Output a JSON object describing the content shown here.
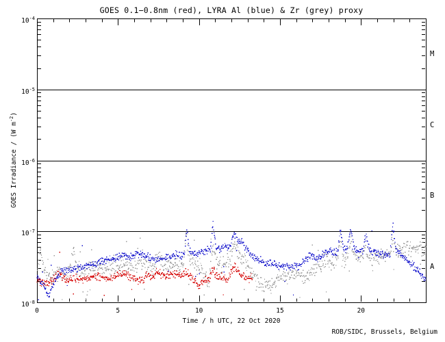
{
  "page": {
    "background": "#ffffff"
  },
  "credit": "ROB/SIDC, Brussels, Belgium",
  "chart_data": {
    "type": "scatter",
    "title": "GOES 0.1−0.8nm (red), LYRA Al (blue) & Zr (grey) proxy",
    "xlabel": "Time / h UTC, 22 Oct 2020",
    "ylabel": {
      "pre": "GOES Irradiance / (W m",
      "sup": "-2",
      "post": ")"
    },
    "x_axis": {
      "range_h": [
        0,
        24
      ],
      "major_ticks": [
        0,
        5,
        10,
        15,
        20
      ],
      "labels": [
        "0",
        "5",
        "10",
        "15",
        "20"
      ],
      "minor_tick_step_h": 1
    },
    "y_axis": {
      "scale": "log",
      "range_w_m2": [
        1e-08,
        0.0001
      ],
      "ticks": [
        {
          "base": "10",
          "exp": "-4",
          "value": 0.0001
        },
        {
          "base": "10",
          "exp": "-5",
          "value": 1e-05
        },
        {
          "base": "10",
          "exp": "-6",
          "value": 1e-06
        },
        {
          "base": "10",
          "exp": "-7",
          "value": 1e-07
        },
        {
          "base": "10",
          "exp": "-8",
          "value": 1e-08
        }
      ],
      "decade_gridlines": [
        1e-05,
        1e-06,
        1e-07
      ]
    },
    "flare_classes": [
      {
        "label": "M",
        "band": [
          1e-05,
          0.0001
        ]
      },
      {
        "label": "C",
        "band": [
          1e-06,
          1e-05
        ]
      },
      {
        "label": "B",
        "band": [
          1e-07,
          1e-06
        ]
      },
      {
        "label": "A",
        "band": [
          1e-08,
          1e-07
        ]
      }
    ],
    "legend_in_title": true,
    "grid": "decade-lines-only",
    "series": [
      {
        "name": "LYRA Zr proxy",
        "color": "#9c9c9c",
        "marker": "dot",
        "t_start": 0,
        "t_end": 24,
        "cadence_h": 0.025,
        "scatter_dex": 0.065,
        "outlier_p": 0.05,
        "trend": [
          [
            0,
            2.6e-08
          ],
          [
            0.25,
            5.5e-08
          ],
          [
            0.5,
            2.8e-08
          ],
          [
            0.9,
            2.2e-08
          ],
          [
            1.3,
            2.6e-08
          ],
          [
            1.7,
            2.4e-08
          ],
          [
            2.1,
            2.9e-08
          ],
          [
            2.25,
            6e-08
          ],
          [
            2.45,
            3e-08
          ],
          [
            2.8,
            2.9e-08
          ],
          [
            3.2,
            3e-08
          ],
          [
            3.6,
            3.1e-08
          ],
          [
            4.0,
            3e-08
          ],
          [
            4.4,
            2.9e-08
          ],
          [
            4.8,
            3.1e-08
          ],
          [
            5.2,
            3.3e-08
          ],
          [
            5.6,
            3.2e-08
          ],
          [
            6.0,
            3.4e-08
          ],
          [
            6.4,
            3.3e-08
          ],
          [
            6.8,
            3.1e-08
          ],
          [
            7.2,
            3e-08
          ],
          [
            7.5,
            4.6e-08
          ],
          [
            7.8,
            3.2e-08
          ],
          [
            8.2,
            3.3e-08
          ],
          [
            8.6,
            3.5e-08
          ],
          [
            9.0,
            3.4e-08
          ],
          [
            9.2,
            9e-08
          ],
          [
            9.4,
            4.2e-08
          ],
          [
            9.7,
            3.3e-08
          ],
          [
            10.0,
            3.2e-08
          ],
          [
            10.4,
            2.5e-08
          ],
          [
            10.6,
            1.8e-08
          ],
          [
            10.87,
            6.5e-08
          ],
          [
            11.1,
            3.6e-08
          ],
          [
            11.4,
            3.3e-08
          ],
          [
            11.7,
            3.8e-08
          ],
          [
            12.0,
            4.5e-08
          ],
          [
            12.2,
            7e-08
          ],
          [
            12.4,
            5.2e-08
          ],
          [
            12.7,
            4.4e-08
          ],
          [
            13.0,
            3.4e-08
          ],
          [
            13.3,
            2.6e-08
          ],
          [
            13.6,
            2e-08
          ],
          [
            13.9,
            1.7e-08
          ],
          [
            14.2,
            1.9e-08
          ],
          [
            14.5,
            1.7e-08
          ],
          [
            14.8,
            2.1e-08
          ],
          [
            15.1,
            2.3e-08
          ],
          [
            15.4,
            2.1e-08
          ],
          [
            15.7,
            2.4e-08
          ],
          [
            16.0,
            2.6e-08
          ],
          [
            16.3,
            2.4e-08
          ],
          [
            16.6,
            2.2e-08
          ],
          [
            17.0,
            2.7e-08
          ],
          [
            17.4,
            3.3e-08
          ],
          [
            17.8,
            3.9e-08
          ],
          [
            18.1,
            3.5e-08
          ],
          [
            18.5,
            4.1e-08
          ],
          [
            18.72,
            7.5e-08
          ],
          [
            18.9,
            4.4e-08
          ],
          [
            19.2,
            4e-08
          ],
          [
            19.38,
            7e-08
          ],
          [
            19.6,
            4.3e-08
          ],
          [
            19.9,
            3.8e-08
          ],
          [
            20.3,
            6e-08
          ],
          [
            20.6,
            4.2e-08
          ],
          [
            21.0,
            4.5e-08
          ],
          [
            21.4,
            4.7e-08
          ],
          [
            21.8,
            4.9e-08
          ],
          [
            21.97,
            8.5e-08
          ],
          [
            22.2,
            5.1e-08
          ],
          [
            22.4,
            5.4e-08
          ],
          [
            22.8,
            5.8e-08
          ],
          [
            23.2,
            5.4e-08
          ],
          [
            23.6,
            6e-08
          ],
          [
            24,
            5.4e-08
          ]
        ]
      },
      {
        "name": "GOES 0.1-0.8nm",
        "color": "#d40000",
        "marker": "dot",
        "t_start": 0,
        "t_end": 13.3,
        "cadence_h": 0.025,
        "scatter_dex": 0.035,
        "outlier_p": 0.015,
        "trend": [
          [
            0,
            2.1e-08
          ],
          [
            0.3,
            1.8e-08
          ],
          [
            0.6,
            1.8e-08
          ],
          [
            0.9,
            2e-08
          ],
          [
            1.3,
            2.5e-08
          ],
          [
            1.6,
            2.2e-08
          ],
          [
            2.0,
            2.1e-08
          ],
          [
            2.5,
            2.2e-08
          ],
          [
            3.0,
            2.1e-08
          ],
          [
            3.5,
            2.4e-08
          ],
          [
            4.0,
            2.3e-08
          ],
          [
            4.5,
            2.1e-08
          ],
          [
            5.0,
            2.4e-08
          ],
          [
            5.5,
            2.5e-08
          ],
          [
            6.0,
            2.2e-08
          ],
          [
            6.3,
            1.9e-08
          ],
          [
            6.7,
            2.3e-08
          ],
          [
            7.2,
            2.4e-08
          ],
          [
            7.5,
            2.7e-08
          ],
          [
            7.9,
            2.3e-08
          ],
          [
            8.4,
            2.5e-08
          ],
          [
            8.9,
            2.4e-08
          ],
          [
            9.2,
            2.7e-08
          ],
          [
            9.6,
            2.2e-08
          ],
          [
            10.0,
            1.6e-08
          ],
          [
            10.3,
            2e-08
          ],
          [
            10.6,
            2.1e-08
          ],
          [
            10.87,
            2.9e-08
          ],
          [
            11.1,
            2.3e-08
          ],
          [
            11.5,
            2.3e-08
          ],
          [
            11.75,
            1.9e-08
          ],
          [
            12.0,
            2.7e-08
          ],
          [
            12.15,
            3.2e-08
          ],
          [
            12.5,
            2.7e-08
          ],
          [
            12.8,
            2.2e-08
          ],
          [
            13.1,
            2.1e-08
          ],
          [
            13.3,
            2.3e-08
          ]
        ]
      },
      {
        "name": "LYRA Al proxy",
        "color": "#1414cc",
        "marker": "dot",
        "t_start": 0,
        "t_end": 24,
        "cadence_h": 0.025,
        "scatter_dex": 0.032,
        "outlier_p": 0.02,
        "trend": [
          [
            0,
            2.3e-08
          ],
          [
            0.3,
            1.9e-08
          ],
          [
            0.55,
            1.5e-08
          ],
          [
            0.75,
            1.25e-08
          ],
          [
            1.0,
            1.8e-08
          ],
          [
            1.5,
            2.7e-08
          ],
          [
            2.0,
            2.9e-08
          ],
          [
            2.6,
            3e-08
          ],
          [
            3.2,
            3.3e-08
          ],
          [
            3.8,
            3.6e-08
          ],
          [
            4.4,
            3.9e-08
          ],
          [
            5.0,
            4.3e-08
          ],
          [
            5.5,
            4.6e-08
          ],
          [
            5.8,
            4.3e-08
          ],
          [
            6.2,
            4.8e-08
          ],
          [
            6.6,
            4.5e-08
          ],
          [
            7.0,
            4.2e-08
          ],
          [
            7.4,
            3.9e-08
          ],
          [
            7.8,
            4.1e-08
          ],
          [
            8.2,
            4.4e-08
          ],
          [
            8.6,
            4.7e-08
          ],
          [
            9.0,
            4.5e-08
          ],
          [
            9.15,
            5.5e-08
          ],
          [
            9.25,
            1.1e-07
          ],
          [
            9.4,
            5.4e-08
          ],
          [
            9.7,
            4.6e-08
          ],
          [
            10.0,
            4.8e-08
          ],
          [
            10.4,
            5.3e-08
          ],
          [
            10.7,
            5.6e-08
          ],
          [
            10.87,
            1.3e-07
          ],
          [
            11.05,
            6e-08
          ],
          [
            11.3,
            5.6e-08
          ],
          [
            11.6,
            6.2e-08
          ],
          [
            11.85,
            5.7e-08
          ],
          [
            12.0,
            7.2e-08
          ],
          [
            12.18,
            9.3e-08
          ],
          [
            12.4,
            7.8e-08
          ],
          [
            12.7,
            6.8e-08
          ],
          [
            12.95,
            5.6e-08
          ],
          [
            13.2,
            4.7e-08
          ],
          [
            13.6,
            4.1e-08
          ],
          [
            14.0,
            3.7e-08
          ],
          [
            14.5,
            3.4e-08
          ],
          [
            15.0,
            3.3e-08
          ],
          [
            15.6,
            3.1e-08
          ],
          [
            16.2,
            3.3e-08
          ],
          [
            16.9,
            4.6e-08
          ],
          [
            17.3,
            4e-08
          ],
          [
            17.8,
            5e-08
          ],
          [
            18.1,
            5.4e-08
          ],
          [
            18.4,
            4.9e-08
          ],
          [
            18.6,
            5.6e-08
          ],
          [
            18.72,
            1.12e-07
          ],
          [
            18.9,
            6e-08
          ],
          [
            19.1,
            5.3e-08
          ],
          [
            19.38,
            1.07e-07
          ],
          [
            19.6,
            5.6e-08
          ],
          [
            19.9,
            5.1e-08
          ],
          [
            20.1,
            5.4e-08
          ],
          [
            20.3,
            8.9e-08
          ],
          [
            20.5,
            5.4e-08
          ],
          [
            20.8,
            5.2e-08
          ],
          [
            21.1,
            4.9e-08
          ],
          [
            21.5,
            4.6e-08
          ],
          [
            21.8,
            4.9e-08
          ],
          [
            21.97,
            1.25e-07
          ],
          [
            22.15,
            5.6e-08
          ],
          [
            22.4,
            4.8e-08
          ],
          [
            22.7,
            4.2e-08
          ],
          [
            23.0,
            3.6e-08
          ],
          [
            23.4,
            3e-08
          ],
          [
            23.7,
            2.5e-08
          ],
          [
            24,
            2.1e-08
          ]
        ]
      }
    ]
  }
}
